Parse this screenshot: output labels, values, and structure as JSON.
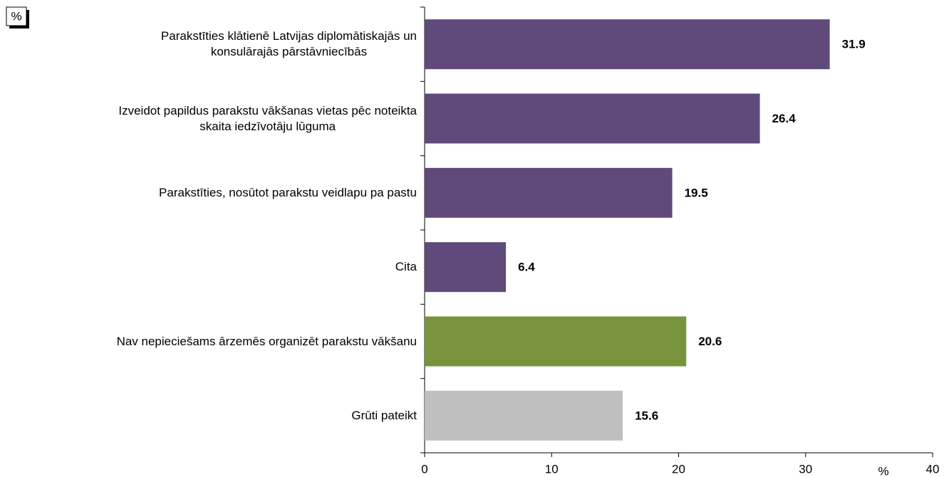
{
  "chart_data": {
    "type": "barh",
    "unit_label": "%",
    "x_label": "%",
    "categories": [
      "Parakstīties klātienē Latvijas diplomātiskajās un\nkonsulārajās pārstāvniecībās",
      "Izveidot papildus parakstu vākšanas vietas pēc noteikta\nskaita iedzīvotāju lūguma",
      "Parakstīties, nosūtot parakstu veidlapu pa pastu",
      "Cita",
      "Nav nepieciešams ārzemēs organizēt parakstu vākšanu",
      "Grūti pateikt"
    ],
    "values": [
      31.9,
      26.4,
      19.5,
      6.4,
      20.6,
      15.6
    ],
    "colors": [
      "#604a7b",
      "#604a7b",
      "#604a7b",
      "#604a7b",
      "#77933c",
      "#bfbfbf"
    ],
    "xlim": [
      0,
      40
    ],
    "xticks": [
      0,
      10,
      20,
      30,
      40
    ]
  }
}
